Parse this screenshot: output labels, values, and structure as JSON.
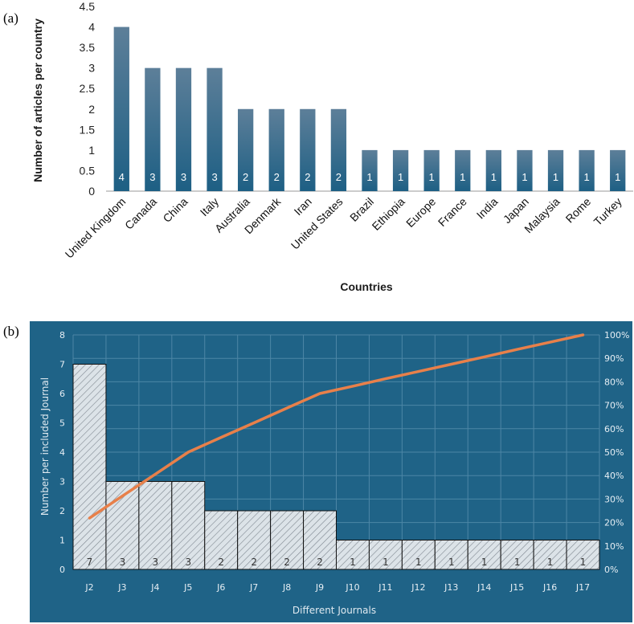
{
  "chart_data": [
    {
      "panel": "(a)",
      "type": "bar",
      "title": "",
      "xlabel": "Countries",
      "ylabel": "Number of articles per country",
      "ylim": [
        0,
        4.5
      ],
      "y_ticks": [
        "0",
        "0.5",
        "1",
        "1.5",
        "2",
        "2.5",
        "3",
        "3.5",
        "4",
        "4.5"
      ],
      "categories": [
        "United Kingdom",
        "Canada",
        "China",
        "Italy",
        "Australia",
        "Denmark",
        "Iran",
        "United States",
        "Brazil",
        "Ethiopia",
        "Europe",
        "France",
        "India",
        "Japan",
        "Malaysia",
        "Rome",
        "Turkey"
      ],
      "values": [
        4,
        3,
        3,
        3,
        2,
        2,
        2,
        2,
        1,
        1,
        1,
        1,
        1,
        1,
        1,
        1,
        1
      ],
      "data_labels": [
        "4",
        "3",
        "3",
        "3",
        "2",
        "2",
        "2",
        "2",
        "1",
        "1",
        "1",
        "1",
        "1",
        "1",
        "1",
        "1",
        "1"
      ],
      "grid": false,
      "bar_color_top": "#5d7f99",
      "bar_color_bottom": "#1d5f84"
    },
    {
      "panel": "(b)",
      "type": "bar",
      "subtype": "pareto",
      "title": "",
      "xlabel": "Different Journals",
      "ylabel": "Number per included Journal",
      "ylim": [
        0,
        8
      ],
      "y_ticks": [
        "0",
        "1",
        "2",
        "3",
        "4",
        "5",
        "6",
        "7",
        "8"
      ],
      "y2lim": [
        0,
        100
      ],
      "y2_ticks": [
        "0%",
        "10%",
        "20%",
        "30%",
        "40%",
        "50%",
        "60%",
        "70%",
        "80%",
        "90%",
        "100%"
      ],
      "categories": [
        "J2",
        "J3",
        "J4",
        "J5",
        "J6",
        "J7",
        "J8",
        "J9",
        "J10",
        "J11",
        "J12",
        "J13",
        "J14",
        "J15",
        "J16",
        "J17"
      ],
      "values": [
        7,
        3,
        3,
        3,
        2,
        2,
        2,
        2,
        1,
        1,
        1,
        1,
        1,
        1,
        1,
        1
      ],
      "data_labels": [
        "7",
        "3",
        "3",
        "3",
        "2",
        "2",
        "2",
        "2",
        "1",
        "1",
        "1",
        "1",
        "1",
        "1",
        "1",
        "1"
      ],
      "cumulative_percent": [
        21.9,
        31.3,
        40.6,
        50.0,
        56.3,
        62.5,
        68.8,
        75.0,
        78.1,
        81.3,
        84.4,
        87.5,
        90.6,
        93.8,
        96.9,
        100.0
      ],
      "grid": true,
      "background_color": "#1f6387",
      "line_color": "#e8804a",
      "bar_fill": "#dce3e8"
    }
  ]
}
